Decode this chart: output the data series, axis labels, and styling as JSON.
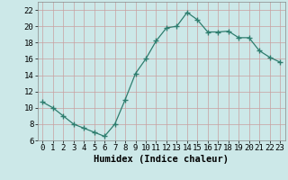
{
  "x": [
    0,
    1,
    2,
    3,
    4,
    5,
    6,
    7,
    8,
    9,
    10,
    11,
    12,
    13,
    14,
    15,
    16,
    17,
    18,
    19,
    20,
    21,
    22,
    23
  ],
  "y": [
    10.7,
    10.0,
    9.0,
    8.0,
    7.5,
    7.0,
    6.5,
    8.0,
    11.0,
    14.2,
    16.0,
    18.2,
    19.8,
    20.0,
    21.7,
    20.8,
    19.3,
    19.3,
    19.4,
    18.6,
    18.6,
    17.0,
    16.2,
    15.6
  ],
  "line_color": "#2e7d6e",
  "marker": "+",
  "marker_size": 4,
  "bg_color": "#cce8e8",
  "grid_color": "#b0d0d0",
  "xlabel": "Humidex (Indice chaleur)",
  "xlim": [
    -0.5,
    23.5
  ],
  "ylim": [
    6,
    23
  ],
  "yticks": [
    6,
    8,
    10,
    12,
    14,
    16,
    18,
    20,
    22
  ],
  "xticks": [
    0,
    1,
    2,
    3,
    4,
    5,
    6,
    7,
    8,
    9,
    10,
    11,
    12,
    13,
    14,
    15,
    16,
    17,
    18,
    19,
    20,
    21,
    22,
    23
  ],
  "xlabel_fontsize": 7.5,
  "tick_fontsize": 6.5,
  "lw": 0.9
}
